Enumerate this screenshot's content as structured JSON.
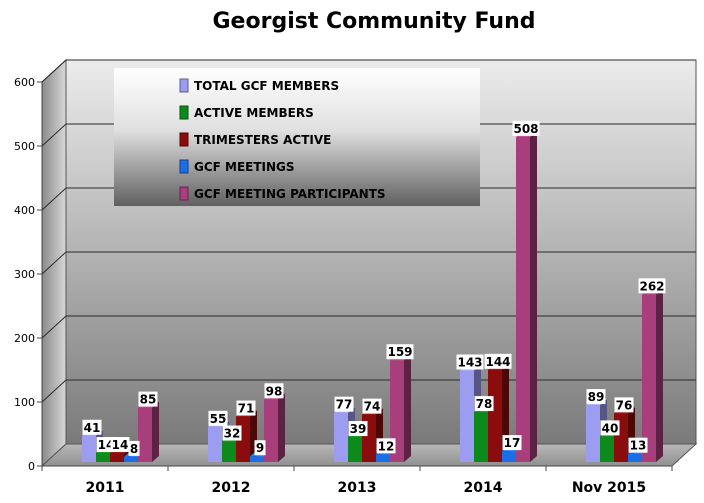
{
  "chart_data": {
    "type": "bar",
    "title": "Georgist Community Fund",
    "categories": [
      "2011",
      "2012",
      "2013",
      "2014",
      "Nov 2015"
    ],
    "ylim": [
      0,
      600
    ],
    "yticks": [
      0,
      100,
      200,
      300,
      400,
      500,
      600
    ],
    "grid": true,
    "legend_position": "top-left",
    "series": [
      {
        "name": "TOTAL GCF MEMBERS",
        "color": "#9c9cf0",
        "values": [
          41,
          55,
          77,
          143,
          89
        ]
      },
      {
        "name": "ACTIVE MEMBERS",
        "color": "#0c8a1c",
        "values": [
          14,
          32,
          39,
          78,
          40
        ]
      },
      {
        "name": "TRIMESTERS ACTIVE",
        "color": "#8a0c0c",
        "values": [
          14,
          71,
          74,
          144,
          76
        ]
      },
      {
        "name": "GCF MEETINGS",
        "color": "#1a6ee6",
        "values": [
          8,
          9,
          12,
          17,
          13
        ]
      },
      {
        "name": "GCF MEETING PARTICIPANTS",
        "color": "#a83e7c",
        "values": [
          85,
          98,
          159,
          508,
          262
        ]
      }
    ]
  }
}
